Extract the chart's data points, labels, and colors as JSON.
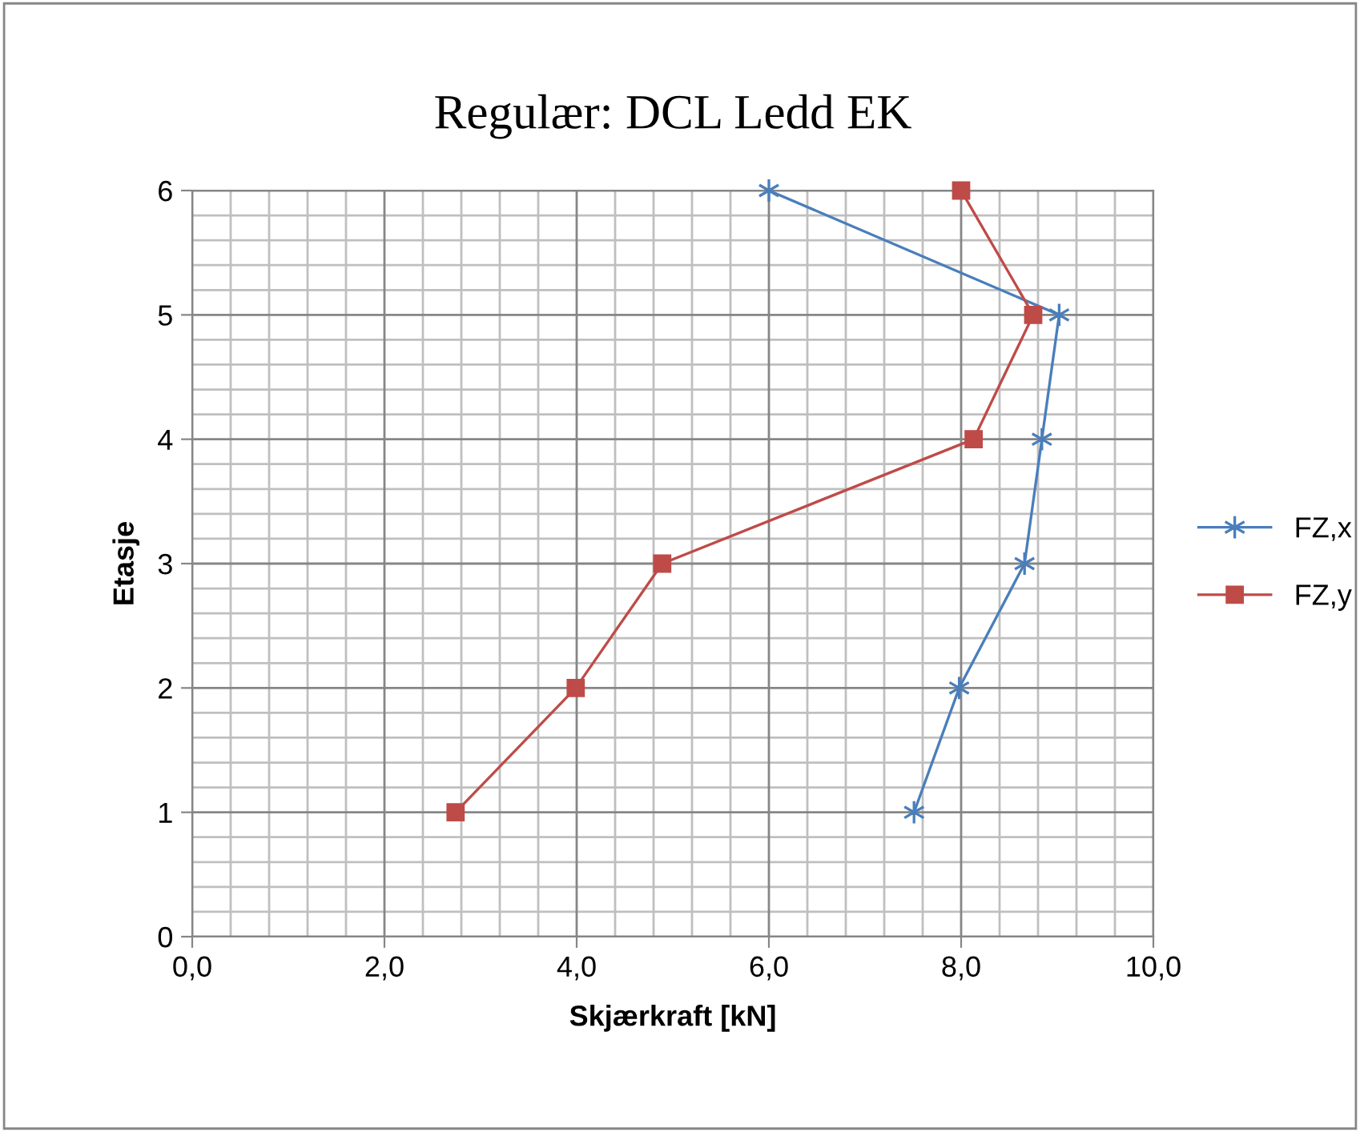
{
  "chart_data": {
    "type": "line",
    "title": "Regulær: DCL Ledd EK",
    "xlabel": "Skjærkraft [kN]",
    "ylabel": "Etasje",
    "xlim": [
      0,
      10
    ],
    "ylim": [
      0,
      6
    ],
    "xticks": [
      {
        "value": 0,
        "label": "0,0"
      },
      {
        "value": 2,
        "label": "2,0"
      },
      {
        "value": 4,
        "label": "4,0"
      },
      {
        "value": 6,
        "label": "6,0"
      },
      {
        "value": 8,
        "label": "8,0"
      },
      {
        "value": 10,
        "label": "10,0"
      }
    ],
    "yticks": [
      0,
      1,
      2,
      3,
      4,
      5,
      6
    ],
    "grid": true,
    "legend": "right",
    "series": [
      {
        "name": "FZ,x",
        "color": "#4a7ebb",
        "marker": "cross",
        "x": [
          6.0,
          9.02,
          8.84,
          8.66,
          7.98,
          7.51
        ],
        "values": [
          6,
          5,
          4,
          3,
          2,
          1
        ]
      },
      {
        "name": "FZ,y",
        "color": "#be4b48",
        "marker": "square",
        "x": [
          8.0,
          8.75,
          8.13,
          4.89,
          3.99,
          2.74
        ],
        "values": [
          6,
          5,
          4,
          3,
          2,
          1
        ]
      }
    ]
  }
}
